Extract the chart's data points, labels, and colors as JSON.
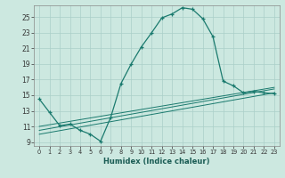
{
  "xlabel": "Humidex (Indice chaleur)",
  "ylabel": "",
  "bg_color": "#cce8e0",
  "grid_color": "#aacfc8",
  "line_color": "#1a7a6e",
  "xlim": [
    -0.5,
    23.5
  ],
  "ylim": [
    8.5,
    26.5
  ],
  "yticks": [
    9,
    11,
    13,
    15,
    17,
    19,
    21,
    23,
    25
  ],
  "xticks": [
    0,
    1,
    2,
    3,
    4,
    5,
    6,
    7,
    8,
    9,
    10,
    11,
    12,
    13,
    14,
    15,
    16,
    17,
    18,
    19,
    20,
    21,
    22,
    23
  ],
  "main_x": [
    0,
    1,
    2,
    3,
    4,
    5,
    6,
    7,
    8,
    9,
    10,
    11,
    12,
    13,
    14,
    15,
    16,
    17,
    18,
    19,
    20,
    21,
    22,
    23
  ],
  "main_y": [
    14.5,
    12.8,
    11.1,
    11.3,
    10.5,
    10.0,
    9.1,
    12.2,
    16.5,
    19.0,
    21.2,
    23.0,
    24.9,
    25.4,
    26.2,
    26.0,
    24.8,
    22.5,
    16.8,
    16.2,
    15.3,
    15.5,
    15.3,
    15.2
  ],
  "line2_x": [
    0,
    23
  ],
  "line2_y": [
    10.5,
    15.8
  ],
  "line3_x": [
    0,
    23
  ],
  "line3_y": [
    10.0,
    15.3
  ],
  "line4_x": [
    0,
    23
  ],
  "line4_y": [
    11.0,
    16.0
  ]
}
